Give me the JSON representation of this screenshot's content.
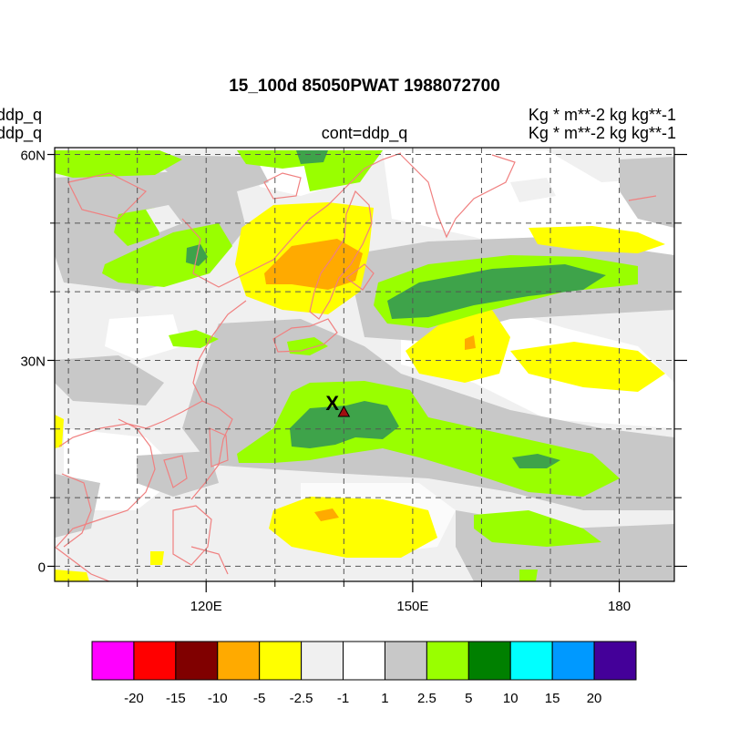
{
  "title": "15_100d 85050PWAT  1988072700",
  "left_labels": [
    "ddp_q",
    "ddp_q"
  ],
  "center_label": "cont=ddp_q",
  "right_labels": [
    "Kg  * m**-2 kg kg**-1",
    "Kg  * m**-2 kg kg**-1"
  ],
  "lat_ticks": [
    {
      "value": 60,
      "label": "60N"
    },
    {
      "value": 30,
      "label": "30N"
    },
    {
      "value": 0,
      "label": "0"
    }
  ],
  "lon_ticks": [
    {
      "value": 120,
      "label": "120E"
    },
    {
      "value": 150,
      "label": "150E"
    },
    {
      "value": 180,
      "label": "180"
    }
  ],
  "marker": {
    "label": "X",
    "lon": 140,
    "lat": 22.5
  },
  "colorbar": {
    "colors": [
      "#ff00ff",
      "#ff0000",
      "#800000",
      "#ffaa00",
      "#ffff00",
      "#f0f0f0",
      "#ffffff",
      "#c8c8c8",
      "#99ff00",
      "#008000",
      "#00ffff",
      "#0099ff",
      "#440099"
    ],
    "labels": [
      "-20",
      "-15",
      "-10",
      "-5",
      "-2.5",
      "-1",
      "1",
      "2.5",
      "5",
      "10",
      "15",
      "20"
    ]
  }
}
